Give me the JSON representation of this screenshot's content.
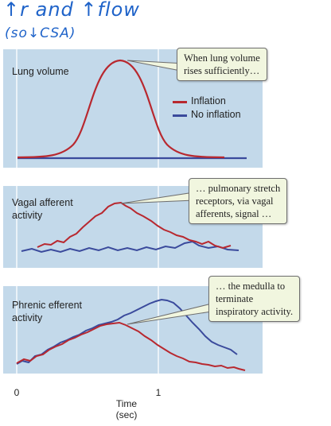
{
  "handwriting": {
    "line1": "↑r and ↑flow",
    "line2": "(so↓CSA)"
  },
  "panels": {
    "lung": {
      "label": "Lung volume",
      "callout": [
        "When lung volume",
        "rises sufficiently…"
      ]
    },
    "vagal": {
      "label_line1": "Vagal afferent",
      "label_line2": "activity",
      "callout": [
        "… pulmonary stretch",
        "receptors, via vagal",
        "afferents, signal …"
      ]
    },
    "phrenic": {
      "label_line1": "Phrenic efferent",
      "label_line2": "activity",
      "callout": [
        "… the medulla to",
        "terminate",
        "inspiratory activity."
      ]
    }
  },
  "legend": [
    {
      "label": "Inflation",
      "color": "#b8282f"
    },
    {
      "label": "No inflation",
      "color": "#3a4a9c"
    }
  ],
  "xaxis": {
    "ticks": [
      "0",
      "1"
    ],
    "label_line1": "Time",
    "label_line2": "(sec)"
  },
  "colors": {
    "panel_bg": "#c3d9ea",
    "inflation": "#b8282f",
    "no_inflation": "#3a4a9c",
    "callout_bg": "#f1f6df",
    "handwriting": "#1f63c9"
  }
}
